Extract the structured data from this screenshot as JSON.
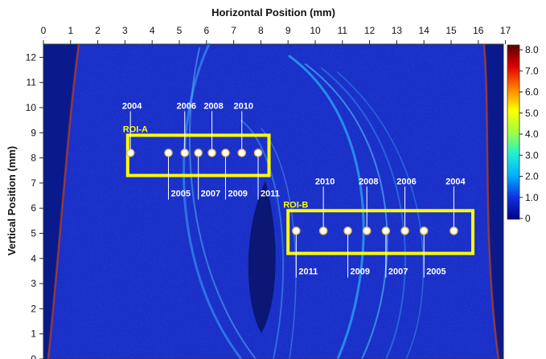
{
  "chart_data": {
    "type": "heatmap",
    "xlabel": "Horizontal Position (mm)",
    "ylabel": "Vertical Position (mm)",
    "xlim": [
      0,
      18
    ],
    "ylim": [
      0,
      12
    ],
    "x_ticks": [
      0,
      1,
      2,
      3,
      4,
      5,
      6,
      7,
      8,
      9,
      10,
      11,
      12,
      13,
      14,
      15,
      16,
      17
    ],
    "y_ticks": [
      0,
      1,
      2,
      3,
      4,
      5,
      6,
      7,
      8,
      9,
      10,
      11,
      12
    ],
    "colorbar": {
      "min": 0,
      "max": 8,
      "ticks": [
        "8.0",
        "7.0",
        "6.0",
        "5.0",
        "4.0",
        "3.0",
        "2.0",
        "1.0",
        "0"
      ],
      "colors": [
        "#00008b",
        "#1030e0",
        "#00b0ff",
        "#20f0d0",
        "#a0ff40",
        "#ffff00",
        "#ff8000",
        "#e00000",
        "#5a0000"
      ]
    },
    "regions": [
      {
        "name": "ROI-A",
        "x_range": [
          3.1,
          8.3
        ],
        "y_range": [
          7.3,
          8.9
        ],
        "color": "#ffff00",
        "points": [
          {
            "label": "2004",
            "x": 3.2,
            "y": 8.2,
            "label_pos": "above"
          },
          {
            "label": "2005",
            "x": 4.6,
            "y": 8.2,
            "label_pos": "below"
          },
          {
            "label": "2006",
            "x": 5.2,
            "y": 8.2,
            "label_pos": "above"
          },
          {
            "label": "2007",
            "x": 5.7,
            "y": 8.2,
            "label_pos": "below"
          },
          {
            "label": "2008",
            "x": 6.2,
            "y": 8.2,
            "label_pos": "above"
          },
          {
            "label": "2009",
            "x": 6.7,
            "y": 8.2,
            "label_pos": "below"
          },
          {
            "label": "2010",
            "x": 7.3,
            "y": 8.2,
            "label_pos": "above"
          },
          {
            "label": "2011",
            "x": 7.9,
            "y": 8.2,
            "label_pos": "below"
          }
        ]
      },
      {
        "name": "ROI-B",
        "x_range": [
          9.0,
          15.8
        ],
        "y_range": [
          4.2,
          5.9
        ],
        "color": "#ffff00",
        "points": [
          {
            "label": "2011",
            "x": 9.3,
            "y": 5.1,
            "label_pos": "below"
          },
          {
            "label": "2010",
            "x": 10.3,
            "y": 5.1,
            "label_pos": "above"
          },
          {
            "label": "2009",
            "x": 11.2,
            "y": 5.1,
            "label_pos": "below"
          },
          {
            "label": "2008",
            "x": 11.9,
            "y": 5.1,
            "label_pos": "above"
          },
          {
            "label": "2007",
            "x": 12.6,
            "y": 5.1,
            "label_pos": "below"
          },
          {
            "label": "2006",
            "x": 13.3,
            "y": 5.1,
            "label_pos": "above"
          },
          {
            "label": "2005",
            "x": 14.0,
            "y": 5.1,
            "label_pos": "below"
          },
          {
            "label": "2004",
            "x": 15.1,
            "y": 5.1,
            "label_pos": "above"
          }
        ]
      }
    ]
  }
}
